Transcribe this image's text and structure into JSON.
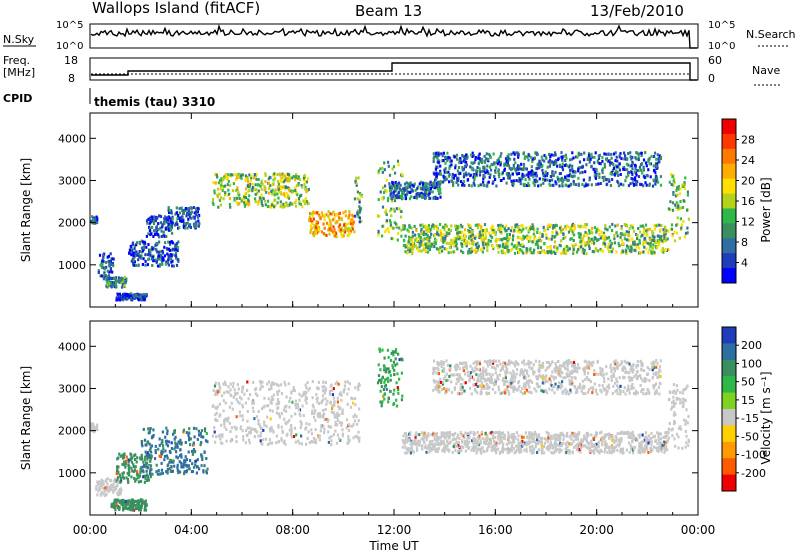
{
  "header": {
    "station": "Wallops Island (fitACF)",
    "beam": "Beam 13",
    "date": "13/Feb/2010"
  },
  "top_panels": {
    "nsky_label": "N.Sky",
    "nsky_ticks": [
      "10^5",
      "10^0"
    ],
    "nsky_ticks_right": [
      "10^5",
      "10^0"
    ],
    "nsearch_label": "N.Search",
    "freq_label_line1": "Freq.",
    "freq_label_line2": "[MHz]",
    "freq_ticks": [
      "18",
      "8"
    ],
    "nave_label": "Nave",
    "nave_ticks": [
      "60",
      "0"
    ],
    "cpid_label": "CPID",
    "cpid_value": "themis (tau) 3310"
  },
  "chart_data": [
    {
      "type": "heatmap",
      "name": "power",
      "ylabel": "Slant Range [km]",
      "ylim": [
        0,
        4600
      ],
      "yticks": [
        "1000",
        "2000",
        "3000",
        "4000"
      ],
      "xlim": [
        0,
        24
      ],
      "colorbar": {
        "label": "Power [dB]",
        "ticks": [
          "4",
          "8",
          "12",
          "16",
          "20",
          "24",
          "28"
        ],
        "colors": [
          "#0000ff",
          "#1f3dbb",
          "#2e6ea2",
          "#3a8f5e",
          "#2fb84a",
          "#b5d21a",
          "#ffe000",
          "#ffae00",
          "#ff7800",
          "#ff3800",
          "#ee0000"
        ]
      },
      "bands": [
        {
          "t": [
            0.0,
            0.25
          ],
          "r": [
            2000,
            2200
          ],
          "power": 8
        },
        {
          "t": [
            0.3,
            0.9
          ],
          "r": [
            700,
            1300
          ],
          "power": 6
        },
        {
          "t": [
            0.6,
            1.4
          ],
          "r": [
            500,
            750
          ],
          "power": 10
        },
        {
          "t": [
            1.0,
            2.2
          ],
          "r": [
            200,
            350
          ],
          "power": 5
        },
        {
          "t": [
            1.5,
            3.5
          ],
          "r": [
            1000,
            1600
          ],
          "power": 6
        },
        {
          "t": [
            2.2,
            3.2
          ],
          "r": [
            1700,
            2200
          ],
          "power": 6
        },
        {
          "t": [
            3.0,
            4.3
          ],
          "r": [
            1900,
            2400
          ],
          "power": 7
        },
        {
          "t": [
            4.8,
            8.6
          ],
          "r": [
            2400,
            3200
          ],
          "power": 16,
          "note": "descending band"
        },
        {
          "t": [
            8.6,
            10.4
          ],
          "r": [
            1700,
            2300
          ],
          "power": 22
        },
        {
          "t": [
            10.4,
            10.7
          ],
          "r": [
            2000,
            3100
          ],
          "power": 12
        },
        {
          "t": [
            11.3,
            12.3
          ],
          "r": [
            1600,
            3500
          ],
          "power": 14
        },
        {
          "t": [
            11.8,
            13.8
          ],
          "r": [
            2600,
            3000
          ],
          "power": 8
        },
        {
          "t": [
            12.3,
            22.8
          ],
          "r": [
            1300,
            2000
          ],
          "power": 15
        },
        {
          "t": [
            13.5,
            22.5
          ],
          "r": [
            2900,
            3700
          ],
          "power": 7
        },
        {
          "t": [
            22.8,
            23.6
          ],
          "r": [
            1600,
            3200
          ],
          "power": 14
        }
      ]
    },
    {
      "type": "heatmap",
      "name": "velocity",
      "ylabel": "Slant Range [km]",
      "ylim": [
        0,
        4600
      ],
      "yticks": [
        "1000",
        "2000",
        "3000",
        "4000"
      ],
      "xlim": [
        0,
        24
      ],
      "xticks": [
        "00:00",
        "04:00",
        "08:00",
        "12:00",
        "16:00",
        "20:00",
        "00:00"
      ],
      "xlabel": "Time UT",
      "colorbar": {
        "label": "Velocity [m s⁻¹]",
        "ticks": [
          "200",
          "100",
          "50",
          "15",
          "-15",
          "-50",
          "-100",
          "-200"
        ],
        "colors": [
          "#1f3dbb",
          "#2e6ea2",
          "#3a8f5e",
          "#2fb84a",
          "#7dd320",
          "#c8c8c8",
          "#ffd000",
          "#ff9a00",
          "#ff5a00",
          "#ee0000"
        ]
      },
      "bands": [
        {
          "t": [
            0.0,
            0.25
          ],
          "r": [
            2000,
            2200
          ],
          "velocity": 0
        },
        {
          "t": [
            0.2,
            1.2
          ],
          "r": [
            500,
            900
          ],
          "velocity": 0
        },
        {
          "t": [
            0.8,
            2.2
          ],
          "r": [
            150,
            400
          ],
          "velocity": 40
        },
        {
          "t": [
            1.0,
            2.4
          ],
          "r": [
            800,
            1500
          ],
          "velocity": 60
        },
        {
          "t": [
            2.0,
            4.6
          ],
          "r": [
            1000,
            2100
          ],
          "velocity": 80
        },
        {
          "t": [
            4.8,
            10.6
          ],
          "r": [
            1700,
            3200
          ],
          "velocity": 0
        },
        {
          "t": [
            11.3,
            12.3
          ],
          "r": [
            2600,
            4000
          ],
          "velocity": 30
        },
        {
          "t": [
            12.3,
            22.8
          ],
          "r": [
            1500,
            2000
          ],
          "velocity": 0
        },
        {
          "t": [
            13.5,
            22.5
          ],
          "r": [
            2900,
            3700
          ],
          "velocity": 0
        },
        {
          "t": [
            22.8,
            23.6
          ],
          "r": [
            1600,
            3200
          ],
          "velocity": 0
        }
      ]
    }
  ]
}
